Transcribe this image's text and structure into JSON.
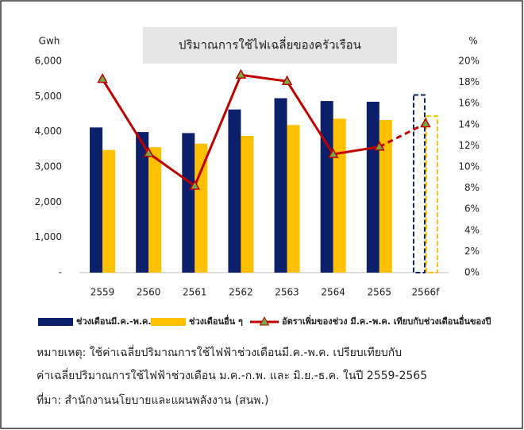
{
  "chart_data": {
    "type": "bar_line",
    "title": "ปริมาณการใช้ไฟเฉลี่ยของครัวเรือน",
    "y_label": "Gwh",
    "y2_label": "%",
    "categories": [
      "2559",
      "2560",
      "2561",
      "2562",
      "2563",
      "2564",
      "2565",
      "2566f"
    ],
    "forecast_index": 7,
    "series": [
      {
        "name": "ช่วงเดือนมี.ค.-พ.ค.",
        "color": "#0c1f6b",
        "values": [
          4120,
          3990,
          3960,
          4630,
          4950,
          4870,
          4850,
          5040
        ]
      },
      {
        "name": "ช่วงเดือนอื่น ๆ",
        "color": "#ffc000",
        "values": [
          3480,
          3560,
          3660,
          3880,
          4190,
          4370,
          4330,
          4440
        ]
      },
      {
        "name": "อัตราเพิ่มของช่วง มี.ค.-พ.ค. เทียบกับช่วงเดือนอื่นของปี",
        "color": "#c00000",
        "marker_color": "#70ad47",
        "axis": "y2",
        "values": [
          18.3,
          11.3,
          8.2,
          18.7,
          18.1,
          11.2,
          11.9,
          14.1
        ]
      }
    ],
    "ylim": [
      0,
      6000
    ],
    "yticks": [
      {
        "value": 0,
        "label": "-"
      },
      {
        "value": 1000,
        "label": "1,000"
      },
      {
        "value": 2000,
        "label": "2,000"
      },
      {
        "value": 3000,
        "label": "3,000"
      },
      {
        "value": 4000,
        "label": "4,000"
      },
      {
        "value": 5000,
        "label": "5,000"
      },
      {
        "value": 6000,
        "label": "6,000"
      }
    ],
    "y2lim": [
      0,
      20
    ],
    "y2ticks": [
      {
        "value": 0,
        "label": "0%"
      },
      {
        "value": 2,
        "label": "2%"
      },
      {
        "value": 4,
        "label": "4%"
      },
      {
        "value": 6,
        "label": "6%"
      },
      {
        "value": 8,
        "label": "8%"
      },
      {
        "value": 10,
        "label": "10%"
      },
      {
        "value": 12,
        "label": "12%"
      },
      {
        "value": 14,
        "label": "14%"
      },
      {
        "value": 16,
        "label": "16%"
      },
      {
        "value": 18,
        "label": "18%"
      },
      {
        "value": 20,
        "label": "20%"
      }
    ]
  },
  "notes": [
    "หมายเหตุ: ใช้ค่าเฉลี่ยปริมาณการใช้ไฟฟ้าช่วงเดือนมี.ค.-พ.ค. เปรียบเทียบกับ",
    "ค่าเฉลี่ยปริมาณการใช้ไฟฟ้าช่วงเดือน ม.ค.-ก.พ. และ มิ.ย.-ธ.ค. ในปี 2559-2565",
    "ที่มา: สำนักงานนโยบายและแผนพลังงาน (สนพ.)"
  ]
}
